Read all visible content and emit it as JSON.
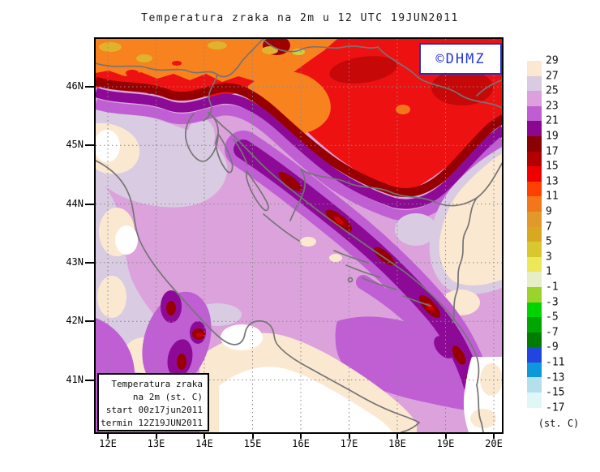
{
  "title": "Temperatura zraka na 2m u 12 UTC 19JUN2011",
  "logo": {
    "text": "©DHMZ",
    "color": "#2336dd"
  },
  "legend": {
    "lines": [
      "Temperatura zraka",
      "na 2m (st. C)",
      "start 00z17jun2011",
      "termin 12Z19JUN2011"
    ]
  },
  "colorbar": {
    "unit": "(st. C)",
    "edge_labels": [
      "29",
      "27",
      "25",
      "23",
      "21",
      "19",
      "17",
      "15",
      "13",
      "11",
      "9",
      "7",
      "5",
      "3",
      "1",
      "-1",
      "-3",
      "-5",
      "-7",
      "-9",
      "-11",
      "-13",
      "-15",
      "-17"
    ],
    "band_colors": [
      "#FCE8D0",
      "#D8CBE2",
      "#DDA0DD",
      "#BE5ED2",
      "#8B078F",
      "#8B0000",
      "#B20000",
      "#EE0000",
      "#FF4000",
      "#F4761B",
      "#E1992C",
      "#D9A821",
      "#D9C72F",
      "#EDE85A",
      "#E4EFC6",
      "#9BD32A",
      "#00D400",
      "#00A500",
      "#007C00",
      "#2245E2",
      "#0E97DB",
      "#B5E0EB",
      "#E0F7F7"
    ]
  },
  "axes": {
    "lat_labels": [
      "46N",
      "45N",
      "44N",
      "43N",
      "42N",
      "41N"
    ],
    "lon_labels": [
      "12E",
      "13E",
      "14E",
      "15E",
      "16E",
      "17E",
      "18E",
      "19E",
      "20E"
    ]
  },
  "map_colors": {
    "sea_plum": "#DCA2DC",
    "lavender": "#D8CBE2",
    "cream": "#FBE8D0",
    "white": "#FFFFFF",
    "orchid": "#BF5FD3",
    "dark_purple": "#8D0A96",
    "maroon": "#970000",
    "red": "#EE1111",
    "dark_red_patch": "#C60808",
    "orange": "#F8821E",
    "gold_spot": "#DFB32D",
    "border_gray": "#757575",
    "grid_gray": "#8A8A8A"
  }
}
